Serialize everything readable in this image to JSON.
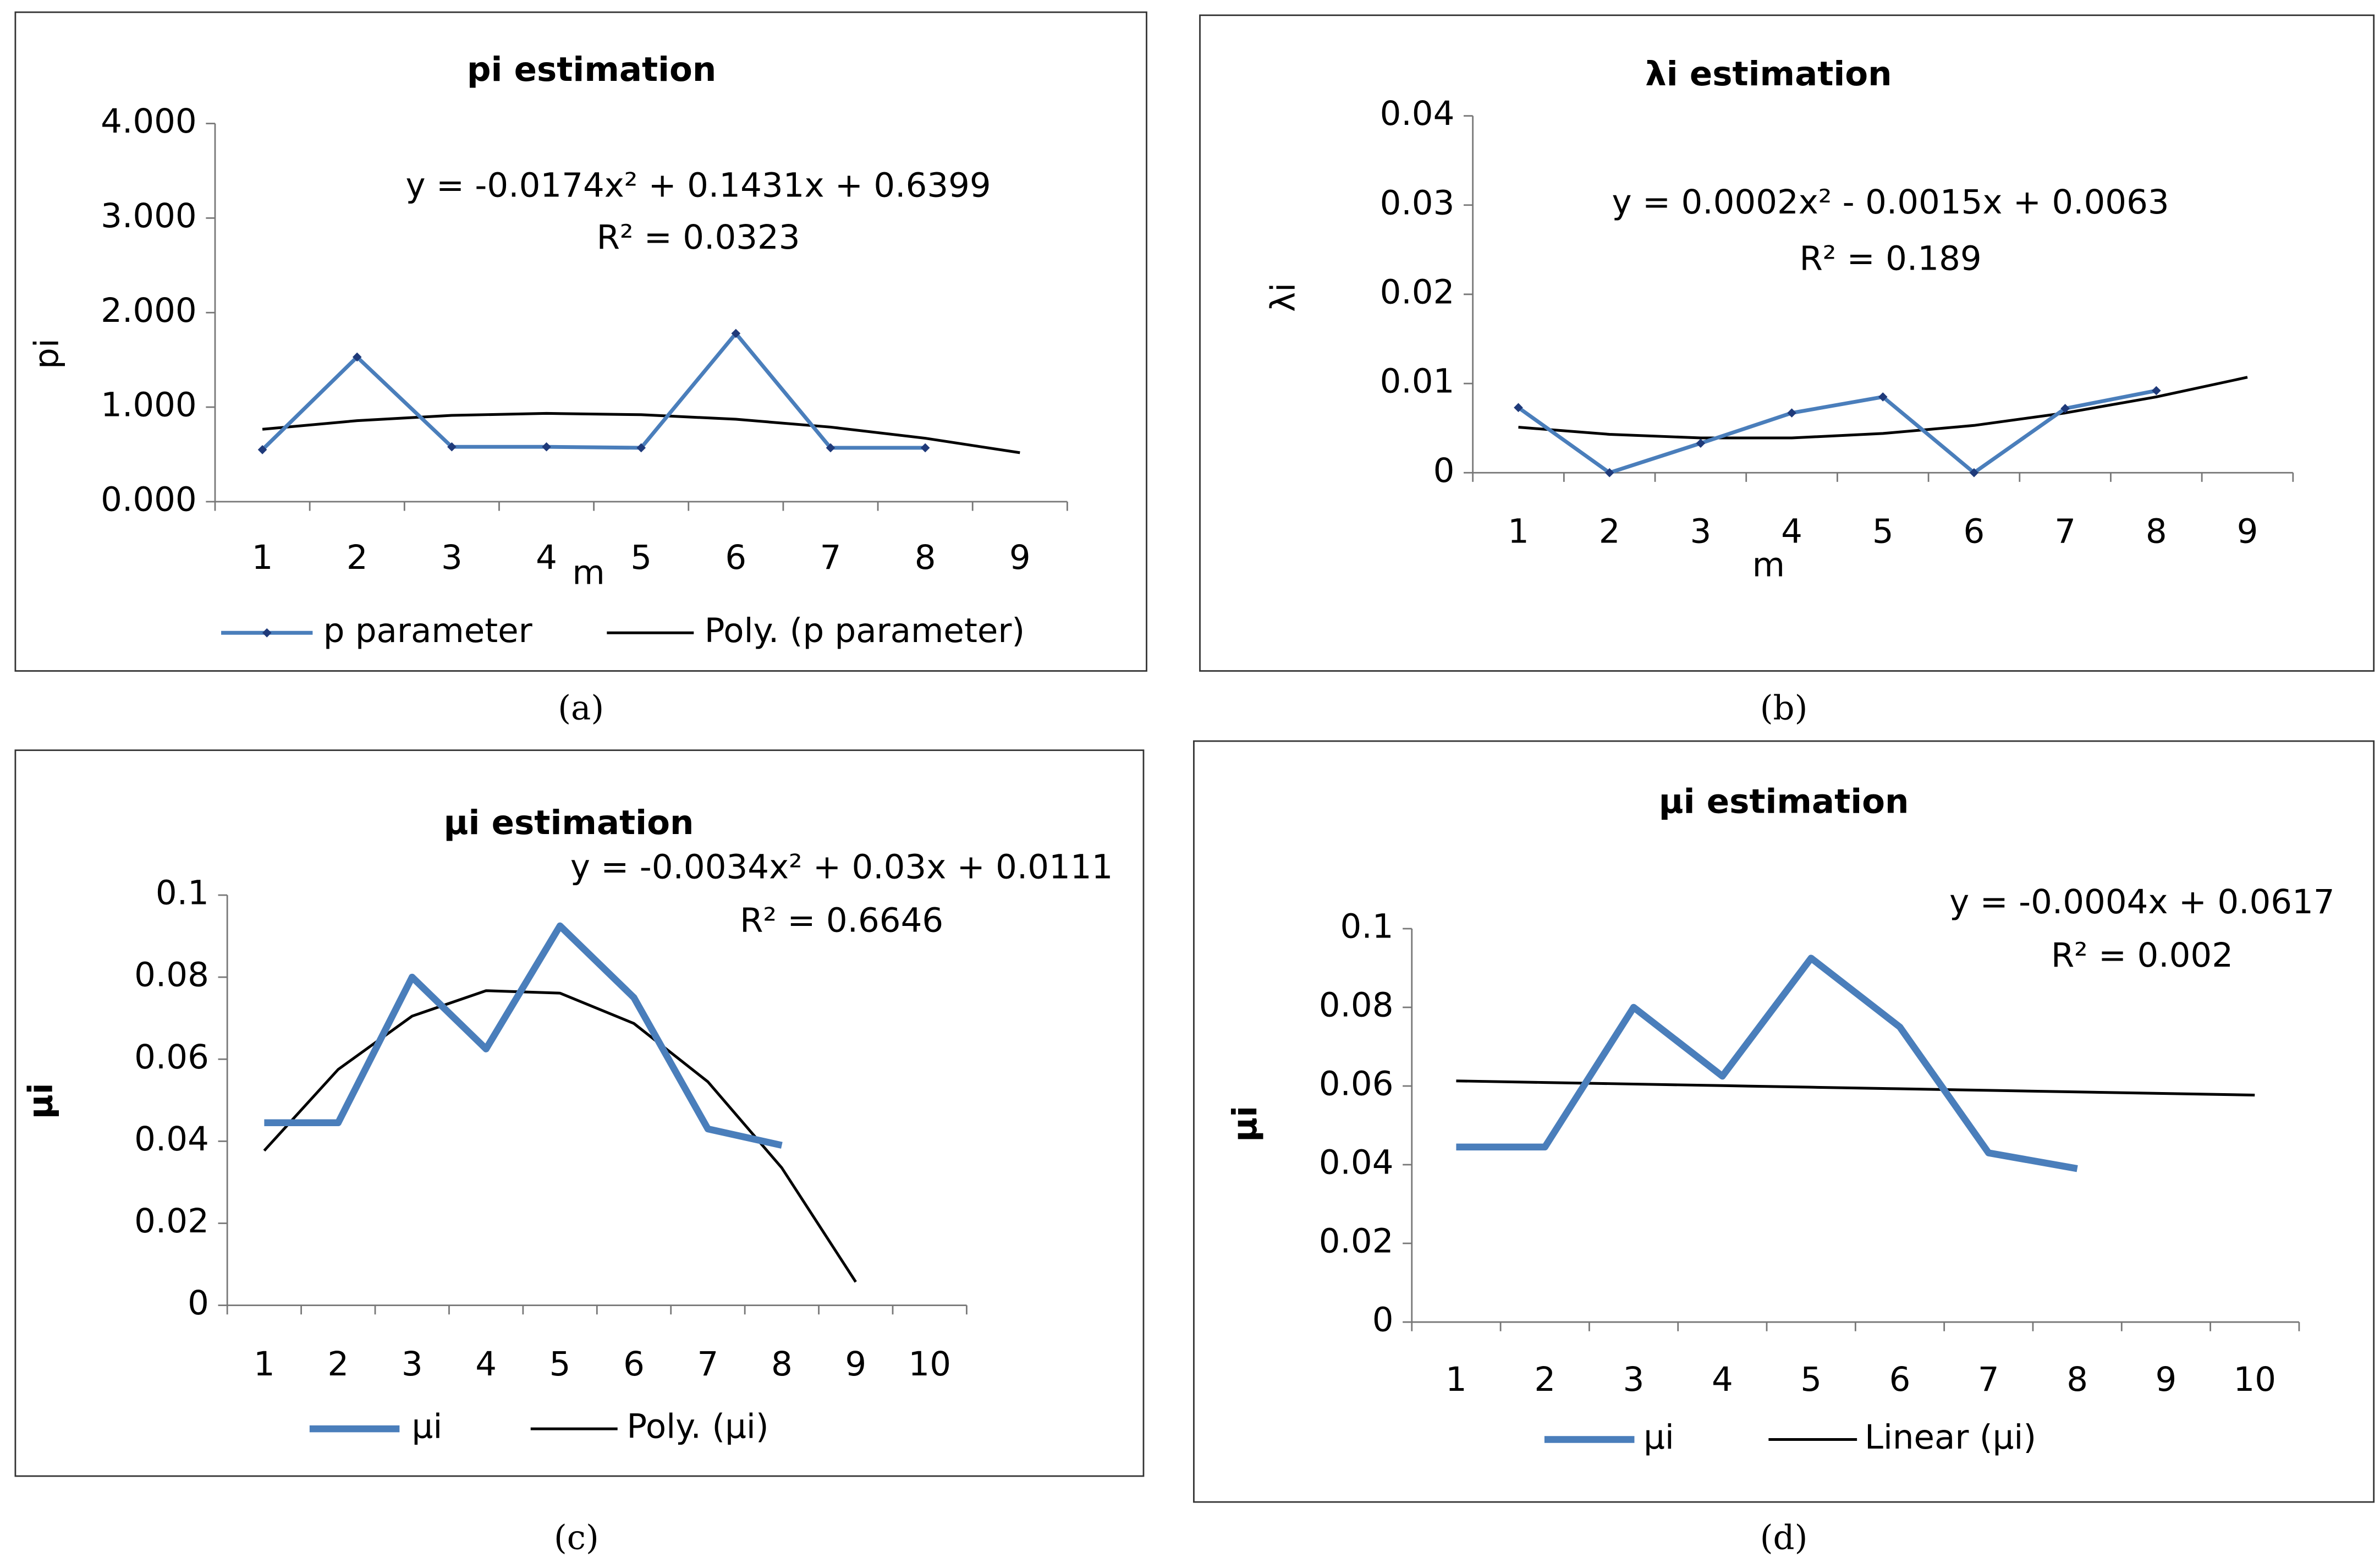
{
  "chart_data": [
    {
      "type": "line",
      "title": "pi estimation",
      "x_label": "m",
      "y_label": "pi",
      "caption": "(a)",
      "annotations": [
        "y = -0.0174x² + 0.1431x + 0.6399",
        "R² = 0.0323"
      ],
      "categories": [
        "1",
        "2",
        "3",
        "4",
        "5",
        "6",
        "7",
        "8",
        "9"
      ],
      "series": [
        {
          "name": "p parameter",
          "color": "#4a7ebb",
          "marker_color": "#1f3a7a",
          "values": [
            0.55,
            1.53,
            0.58,
            0.58,
            0.57,
            1.78,
            0.57,
            0.57,
            null
          ]
        },
        {
          "name": "Poly. (p parameter)",
          "color": "#000000",
          "values": [
            0.766,
            0.857,
            0.913,
            0.934,
            0.92,
            0.872,
            0.789,
            0.671,
            0.518
          ]
        }
      ],
      "ylim": [
        0,
        4
      ],
      "yticks": [
        {
          "value": 0,
          "label": "0.000"
        },
        {
          "value": 1,
          "label": "1.000"
        },
        {
          "value": 2,
          "label": "2.000"
        },
        {
          "value": 3,
          "label": "3.000"
        },
        {
          "value": 4,
          "label": "4.000"
        }
      ],
      "markers": true,
      "legend": true
    },
    {
      "type": "line",
      "title": "λi estimation",
      "x_label": "m",
      "y_label": "λi",
      "caption": "(b)",
      "annotations": [
        "y = 0.0002x² - 0.0015x + 0.0063",
        "R² = 0.189"
      ],
      "categories": [
        "1",
        "2",
        "3",
        "4",
        "5",
        "6",
        "7",
        "8",
        "9"
      ],
      "series": [
        {
          "color": "#4a7ebb",
          "marker_color": "#1f3a7a",
          "values": [
            0.0073,
            0,
            0.0033,
            0.0067,
            0.0085,
            0,
            0.0072,
            0.0092,
            null
          ]
        },
        {
          "color": "#000000",
          "values": [
            0.0051,
            0.0043,
            0.0039,
            0.0039,
            0.0044,
            0.0053,
            0.0067,
            0.0085,
            0.0107
          ]
        }
      ],
      "ylim": [
        0,
        0.04
      ],
      "yticks": [
        0,
        0.01,
        0.02,
        0.03,
        0.04
      ],
      "markers": true,
      "legend": false
    },
    {
      "type": "line",
      "title": "μi estimation",
      "y_label": "μi",
      "caption": "(c)",
      "annotations": [
        "y = -0.0034x² + 0.03x + 0.0111",
        "R² = 0.6646"
      ],
      "categories": [
        "1",
        "2",
        "3",
        "4",
        "5",
        "6",
        "7",
        "8",
        "9",
        "10"
      ],
      "series": [
        {
          "name": "μi",
          "color": "#4a7ebb",
          "values": [
            0.0445,
            0.0445,
            0.08,
            0.0625,
            0.0925,
            0.075,
            0.043,
            0.039,
            null,
            null
          ]
        },
        {
          "name": "Poly. (μi)",
          "color": "#000000",
          "values": [
            0.0377,
            0.0575,
            0.0705,
            0.0767,
            0.0761,
            0.0687,
            0.0545,
            0.0335,
            0.0057,
            null
          ]
        }
      ],
      "ylim": [
        0,
        0.1
      ],
      "yticks": [
        0,
        0.02,
        0.04,
        0.06,
        0.08,
        0.1
      ],
      "markers": false,
      "legend": true
    },
    {
      "type": "line",
      "title": "μi estimation",
      "y_label": "μi",
      "caption": "(d)",
      "annotations": [
        "y = -0.0004x + 0.0617",
        "R² = 0.002"
      ],
      "categories": [
        "1",
        "2",
        "3",
        "4",
        "5",
        "6",
        "7",
        "8",
        "9",
        "10"
      ],
      "series": [
        {
          "name": "μi",
          "color": "#4a7ebb",
          "values": [
            0.0445,
            0.0445,
            0.08,
            0.0625,
            0.0925,
            0.075,
            0.043,
            0.039,
            null,
            null
          ]
        },
        {
          "name": "Linear (μi)",
          "color": "#000000",
          "values": [
            0.0613,
            0.0609,
            0.0605,
            0.0601,
            0.0597,
            0.0593,
            0.0589,
            0.0585,
            0.0581,
            0.0577
          ]
        }
      ],
      "ylim": [
        0,
        0.1
      ],
      "yticks": [
        0,
        0.02,
        0.04,
        0.06,
        0.08,
        0.1
      ],
      "markers": false,
      "legend": true
    }
  ]
}
